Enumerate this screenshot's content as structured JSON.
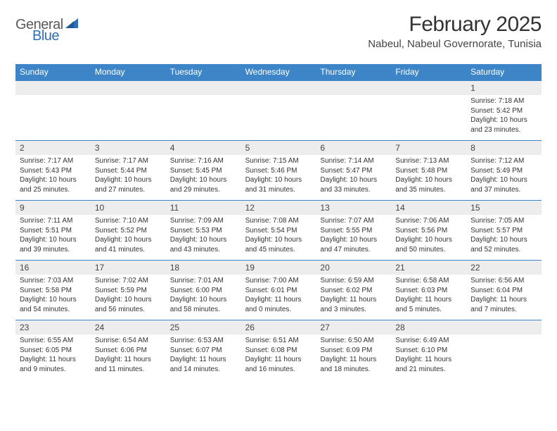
{
  "brand": {
    "general": "General",
    "blue": "Blue"
  },
  "header": {
    "title": "February 2025",
    "location": "Nabeul, Nabeul Governorate, Tunisia"
  },
  "colors": {
    "header_bg": "#3d85c6",
    "shade_bg": "#ededed",
    "rule": "#3d85c6",
    "text": "#333333"
  },
  "dayNames": [
    "Sunday",
    "Monday",
    "Tuesday",
    "Wednesday",
    "Thursday",
    "Friday",
    "Saturday"
  ],
  "weeks": [
    [
      null,
      null,
      null,
      null,
      null,
      null,
      {
        "n": "1",
        "sr": "Sunrise: 7:18 AM",
        "ss": "Sunset: 5:42 PM",
        "dl1": "Daylight: 10 hours",
        "dl2": "and 23 minutes."
      }
    ],
    [
      {
        "n": "2",
        "sr": "Sunrise: 7:17 AM",
        "ss": "Sunset: 5:43 PM",
        "dl1": "Daylight: 10 hours",
        "dl2": "and 25 minutes."
      },
      {
        "n": "3",
        "sr": "Sunrise: 7:17 AM",
        "ss": "Sunset: 5:44 PM",
        "dl1": "Daylight: 10 hours",
        "dl2": "and 27 minutes."
      },
      {
        "n": "4",
        "sr": "Sunrise: 7:16 AM",
        "ss": "Sunset: 5:45 PM",
        "dl1": "Daylight: 10 hours",
        "dl2": "and 29 minutes."
      },
      {
        "n": "5",
        "sr": "Sunrise: 7:15 AM",
        "ss": "Sunset: 5:46 PM",
        "dl1": "Daylight: 10 hours",
        "dl2": "and 31 minutes."
      },
      {
        "n": "6",
        "sr": "Sunrise: 7:14 AM",
        "ss": "Sunset: 5:47 PM",
        "dl1": "Daylight: 10 hours",
        "dl2": "and 33 minutes."
      },
      {
        "n": "7",
        "sr": "Sunrise: 7:13 AM",
        "ss": "Sunset: 5:48 PM",
        "dl1": "Daylight: 10 hours",
        "dl2": "and 35 minutes."
      },
      {
        "n": "8",
        "sr": "Sunrise: 7:12 AM",
        "ss": "Sunset: 5:49 PM",
        "dl1": "Daylight: 10 hours",
        "dl2": "and 37 minutes."
      }
    ],
    [
      {
        "n": "9",
        "sr": "Sunrise: 7:11 AM",
        "ss": "Sunset: 5:51 PM",
        "dl1": "Daylight: 10 hours",
        "dl2": "and 39 minutes."
      },
      {
        "n": "10",
        "sr": "Sunrise: 7:10 AM",
        "ss": "Sunset: 5:52 PM",
        "dl1": "Daylight: 10 hours",
        "dl2": "and 41 minutes."
      },
      {
        "n": "11",
        "sr": "Sunrise: 7:09 AM",
        "ss": "Sunset: 5:53 PM",
        "dl1": "Daylight: 10 hours",
        "dl2": "and 43 minutes."
      },
      {
        "n": "12",
        "sr": "Sunrise: 7:08 AM",
        "ss": "Sunset: 5:54 PM",
        "dl1": "Daylight: 10 hours",
        "dl2": "and 45 minutes."
      },
      {
        "n": "13",
        "sr": "Sunrise: 7:07 AM",
        "ss": "Sunset: 5:55 PM",
        "dl1": "Daylight: 10 hours",
        "dl2": "and 47 minutes."
      },
      {
        "n": "14",
        "sr": "Sunrise: 7:06 AM",
        "ss": "Sunset: 5:56 PM",
        "dl1": "Daylight: 10 hours",
        "dl2": "and 50 minutes."
      },
      {
        "n": "15",
        "sr": "Sunrise: 7:05 AM",
        "ss": "Sunset: 5:57 PM",
        "dl1": "Daylight: 10 hours",
        "dl2": "and 52 minutes."
      }
    ],
    [
      {
        "n": "16",
        "sr": "Sunrise: 7:03 AM",
        "ss": "Sunset: 5:58 PM",
        "dl1": "Daylight: 10 hours",
        "dl2": "and 54 minutes."
      },
      {
        "n": "17",
        "sr": "Sunrise: 7:02 AM",
        "ss": "Sunset: 5:59 PM",
        "dl1": "Daylight: 10 hours",
        "dl2": "and 56 minutes."
      },
      {
        "n": "18",
        "sr": "Sunrise: 7:01 AM",
        "ss": "Sunset: 6:00 PM",
        "dl1": "Daylight: 10 hours",
        "dl2": "and 58 minutes."
      },
      {
        "n": "19",
        "sr": "Sunrise: 7:00 AM",
        "ss": "Sunset: 6:01 PM",
        "dl1": "Daylight: 11 hours",
        "dl2": "and 0 minutes."
      },
      {
        "n": "20",
        "sr": "Sunrise: 6:59 AM",
        "ss": "Sunset: 6:02 PM",
        "dl1": "Daylight: 11 hours",
        "dl2": "and 3 minutes."
      },
      {
        "n": "21",
        "sr": "Sunrise: 6:58 AM",
        "ss": "Sunset: 6:03 PM",
        "dl1": "Daylight: 11 hours",
        "dl2": "and 5 minutes."
      },
      {
        "n": "22",
        "sr": "Sunrise: 6:56 AM",
        "ss": "Sunset: 6:04 PM",
        "dl1": "Daylight: 11 hours",
        "dl2": "and 7 minutes."
      }
    ],
    [
      {
        "n": "23",
        "sr": "Sunrise: 6:55 AM",
        "ss": "Sunset: 6:05 PM",
        "dl1": "Daylight: 11 hours",
        "dl2": "and 9 minutes."
      },
      {
        "n": "24",
        "sr": "Sunrise: 6:54 AM",
        "ss": "Sunset: 6:06 PM",
        "dl1": "Daylight: 11 hours",
        "dl2": "and 11 minutes."
      },
      {
        "n": "25",
        "sr": "Sunrise: 6:53 AM",
        "ss": "Sunset: 6:07 PM",
        "dl1": "Daylight: 11 hours",
        "dl2": "and 14 minutes."
      },
      {
        "n": "26",
        "sr": "Sunrise: 6:51 AM",
        "ss": "Sunset: 6:08 PM",
        "dl1": "Daylight: 11 hours",
        "dl2": "and 16 minutes."
      },
      {
        "n": "27",
        "sr": "Sunrise: 6:50 AM",
        "ss": "Sunset: 6:09 PM",
        "dl1": "Daylight: 11 hours",
        "dl2": "and 18 minutes."
      },
      {
        "n": "28",
        "sr": "Sunrise: 6:49 AM",
        "ss": "Sunset: 6:10 PM",
        "dl1": "Daylight: 11 hours",
        "dl2": "and 21 minutes."
      },
      null
    ]
  ]
}
